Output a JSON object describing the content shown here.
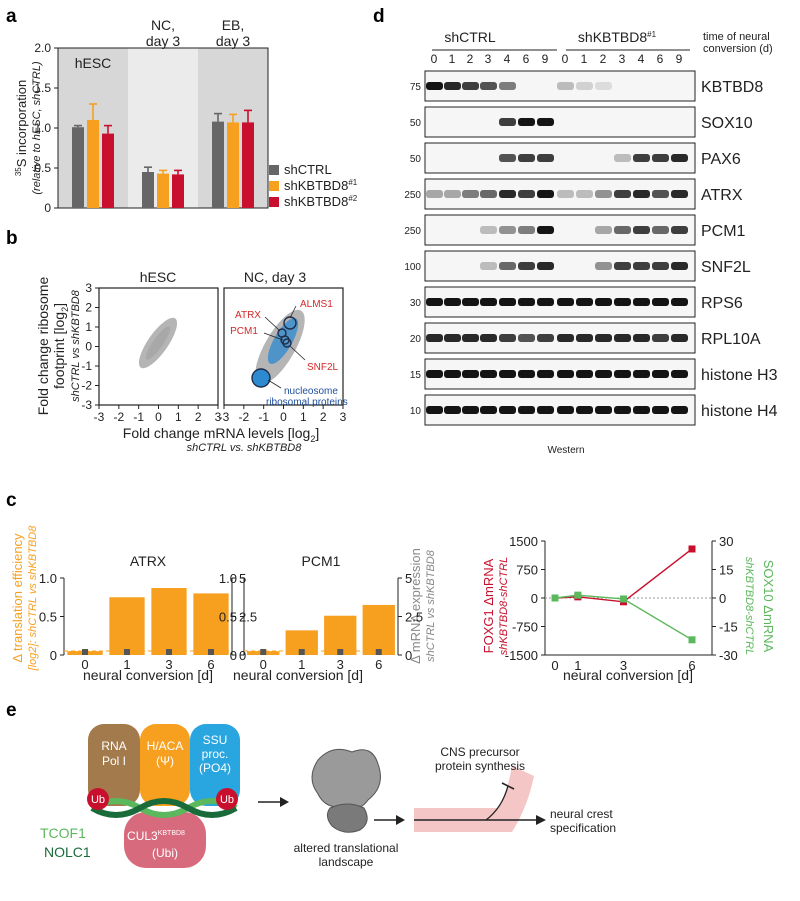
{
  "panels": {
    "a": "a",
    "b": "b",
    "c": "c",
    "d": "d",
    "e": "e"
  },
  "panel_a": {
    "conditions": [
      "hESC",
      "NC,",
      "day 3",
      "EB,",
      "day 3"
    ],
    "ylabel_main": "35S incorporation",
    "ylabel_sup": "35",
    "ylabel_rest": "S incorporation",
    "ylabel_sub": "(relative to hESC, shCTRL)",
    "yticks": [
      "0",
      "0.5",
      "1.0",
      "1.5",
      "2.0"
    ],
    "legend": [
      "shCTRL",
      "shKBTBD8",
      "shKBTBD8"
    ],
    "legend_sup": [
      "#1",
      "#2"
    ]
  },
  "panel_b": {
    "titles": [
      "hESC",
      "NC, day 3"
    ],
    "ylabel1": "Fold change ribosome",
    "ylabel2": "footprint [log",
    "ylabel2_sub": "2",
    "ylabel2_end": "]",
    "ylabel3": "shCTRL vs shKBTBD8",
    "xlabel1": "Fold change mRNA levels [log",
    "xlabel1_sub": "2",
    "xlabel1_end": "]",
    "xlabel2": "shCTRL vs. shKBTBD8",
    "xticks": [
      "-3",
      "-2",
      "-1",
      "0",
      "1",
      "2",
      "3"
    ],
    "yticks": [
      "3",
      "2",
      "1",
      "0",
      "-1",
      "-2",
      "-3"
    ],
    "labels_red": [
      "ALMS1",
      "ATRX",
      "PCM1",
      "SNF2L"
    ],
    "labels_blue": [
      "nucleosome",
      "ribosomal proteins"
    ]
  },
  "panel_c": {
    "ylabel_left1": "Δ translation efficiency",
    "ylabel_left2": "[log2]: shCTRL vs shKBTBD8",
    "ylabel_right1": "Δ mRNA expression",
    "ylabel_right2": "shCTRL vs shKBTBD8",
    "xlabel": "neural conversion [d]",
    "bar_titles": [
      "ATRX",
      "PCM1"
    ],
    "left_ticks": [
      "0",
      "0.5",
      "1.0"
    ],
    "right_ticks": [
      "0",
      "2.5",
      "5"
    ],
    "days": [
      "0",
      "1",
      "3",
      "6"
    ],
    "line_left_label": "FOXG1 ΔmRNA",
    "line_left_sub": "shKBTBD8-shCTRL",
    "line_right_label": "SOX10 ΔmRNA",
    "line_right_sub": "shKBTBD8-shCTRL",
    "line_left_ticks": [
      "1500",
      "750",
      "0",
      "-750",
      "-1500"
    ],
    "line_right_ticks": [
      "30",
      "15",
      "0",
      "-15",
      "-30"
    ]
  },
  "panel_d": {
    "groups": [
      "shCTRL",
      "shKBTBD8",
      "#1"
    ],
    "time_label1": "time of neural",
    "time_label2": "conversion (d)",
    "lanes": [
      "0",
      "1",
      "2",
      "3",
      "4",
      "6",
      "9",
      "0",
      "1",
      "2",
      "3",
      "4",
      "6",
      "9"
    ],
    "blots": [
      {
        "name": "KBTBD8",
        "mw": "75"
      },
      {
        "name": "SOX10",
        "mw": "50"
      },
      {
        "name": "PAX6",
        "mw": "50"
      },
      {
        "name": "ATRX",
        "mw": "250"
      },
      {
        "name": "PCM1",
        "mw": "250"
      },
      {
        "name": "SNF2L",
        "mw": "100"
      },
      {
        "name": "RPS6",
        "mw": "30"
      },
      {
        "name": "RPL10A",
        "mw": "20"
      },
      {
        "name": "histone H3",
        "mw": "15"
      },
      {
        "name": "histone H4",
        "mw": "10"
      }
    ],
    "footer": "Western"
  },
  "panel_e": {
    "box1": [
      "RNA",
      "Pol I"
    ],
    "box2": [
      "H/ACA",
      "(Ψ)"
    ],
    "box3": [
      "SSU",
      "proc.",
      "(PO4)"
    ],
    "ub": "Ub",
    "cul3": "CUL3",
    "cul3_sup": "KBTBD8",
    "cul3_sub": "(Ubi)",
    "tcof1": "TCOF1",
    "nolc1": "NOLC1",
    "altered1": "altered translational",
    "altered2": "landscape",
    "cns1": "CNS precursor",
    "cns2": "protein synthesis",
    "nc1": "neural crest",
    "nc2": "specification"
  },
  "colors": {
    "gray": "#666666",
    "orange": "#f7a020",
    "red": "#c8102e",
    "blue": "#1f4e9c",
    "green": "#5cb85c",
    "darkgreen": "#1a6b3a"
  },
  "chart_data": [
    {
      "type": "bar",
      "title": "",
      "ylabel": "35S incorporation (relative to hESC, shCTRL)",
      "categories": [
        "hESC",
        "NC, day 3",
        "EB, day 3"
      ],
      "ylim": [
        0,
        2.0
      ],
      "series": [
        {
          "name": "shCTRL",
          "values": [
            1.01,
            0.45,
            1.08
          ],
          "errors": [
            0.02,
            0.06,
            0.1
          ]
        },
        {
          "name": "shKBTBD8#1",
          "values": [
            1.1,
            0.43,
            1.07
          ],
          "errors": [
            0.2,
            0.04,
            0.1
          ]
        },
        {
          "name": "shKBTBD8#2",
          "values": [
            0.93,
            0.42,
            1.07
          ],
          "errors": [
            0.1,
            0.05,
            0.15
          ]
        }
      ]
    },
    {
      "type": "bar",
      "title": "ATRX",
      "xlabel": "neural conversion [d]",
      "categories": [
        "0",
        "1",
        "3",
        "6"
      ],
      "ylim": [
        0,
        1.0
      ],
      "series": [
        {
          "name": "Δ translation efficiency",
          "values": [
            0.05,
            0.75,
            0.87,
            0.8
          ]
        },
        {
          "name": "Δ mRNA expression",
          "values": [
            0.05,
            0.1,
            0.15,
            0.05
          ]
        }
      ]
    },
    {
      "type": "bar",
      "title": "PCM1",
      "xlabel": "neural conversion [d]",
      "categories": [
        "0",
        "1",
        "3",
        "6"
      ],
      "ylim": [
        0,
        1.0
      ],
      "series": [
        {
          "name": "Δ translation efficiency",
          "values": [
            0.05,
            0.32,
            0.51,
            0.65
          ]
        },
        {
          "name": "Δ mRNA expression",
          "values": [
            0.05,
            0.1,
            0.1,
            0.05
          ]
        }
      ]
    },
    {
      "type": "line",
      "xlabel": "neural conversion [d]",
      "x": [
        0,
        1,
        3,
        6
      ],
      "series": [
        {
          "name": "FOXG1 ΔmRNA",
          "values": [
            0,
            30,
            -100,
            1290
          ],
          "ylim": [
            -1500,
            1500
          ]
        },
        {
          "name": "SOX10 ΔmRNA",
          "values": [
            0,
            1.5,
            -0.5,
            -22
          ],
          "ylim": [
            -30,
            30
          ]
        }
      ]
    }
  ]
}
